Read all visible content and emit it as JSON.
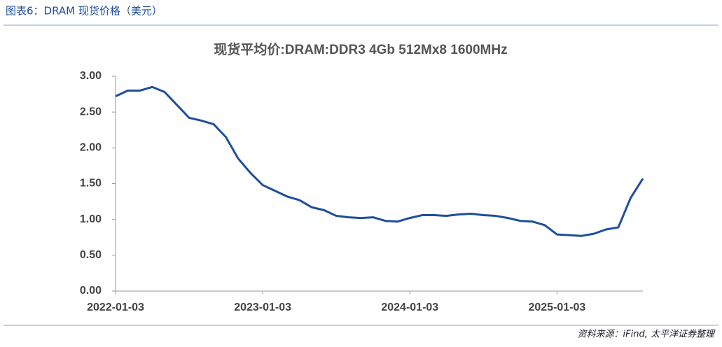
{
  "header": {
    "title": "图表6：DRAM 现货价格（美元）"
  },
  "chart_data": {
    "type": "line",
    "title": "现货平均价:DRAM:DDR3 4Gb 512Mx8 1600MHz",
    "categories": [
      "2022-01-03",
      null,
      null,
      null,
      null,
      null,
      null,
      null,
      null,
      null,
      null,
      null,
      "2023-01-03",
      null,
      null,
      null,
      null,
      null,
      null,
      null,
      null,
      null,
      null,
      null,
      "2024-01-03",
      null,
      null,
      null,
      null,
      null,
      null,
      null,
      null,
      null,
      null,
      null,
      "2025-01-03",
      null,
      null,
      null,
      null,
      null,
      null,
      null
    ],
    "series": [
      {
        "name": "现货平均价:DRAM:DDR3 4Gb 512Mx8 1600MHz",
        "color": "#1f4e9c",
        "values": [
          2.72,
          2.8,
          2.8,
          2.85,
          2.78,
          2.6,
          2.42,
          2.38,
          2.33,
          2.15,
          1.85,
          1.65,
          1.48,
          1.4,
          1.32,
          1.27,
          1.17,
          1.13,
          1.05,
          1.03,
          1.02,
          1.03,
          0.98,
          0.97,
          1.02,
          1.06,
          1.06,
          1.05,
          1.07,
          1.08,
          1.06,
          1.05,
          1.02,
          0.98,
          0.97,
          0.92,
          0.79,
          0.78,
          0.77,
          0.8,
          0.86,
          0.89,
          1.3,
          1.57
        ]
      }
    ],
    "ylim": [
      0,
      3
    ],
    "yticks": [
      {
        "value": 0,
        "label": "0.00"
      },
      {
        "value": 0.5,
        "label": "0.50"
      },
      {
        "value": 1,
        "label": "1.00"
      },
      {
        "value": 1.5,
        "label": "1.50"
      },
      {
        "value": 2,
        "label": "2.00"
      },
      {
        "value": 2.5,
        "label": "2.50"
      },
      {
        "value": 3,
        "label": "3.00"
      }
    ],
    "grid": false
  },
  "footer": {
    "source": "资料来源：iFind, 太平洋证券整理"
  }
}
